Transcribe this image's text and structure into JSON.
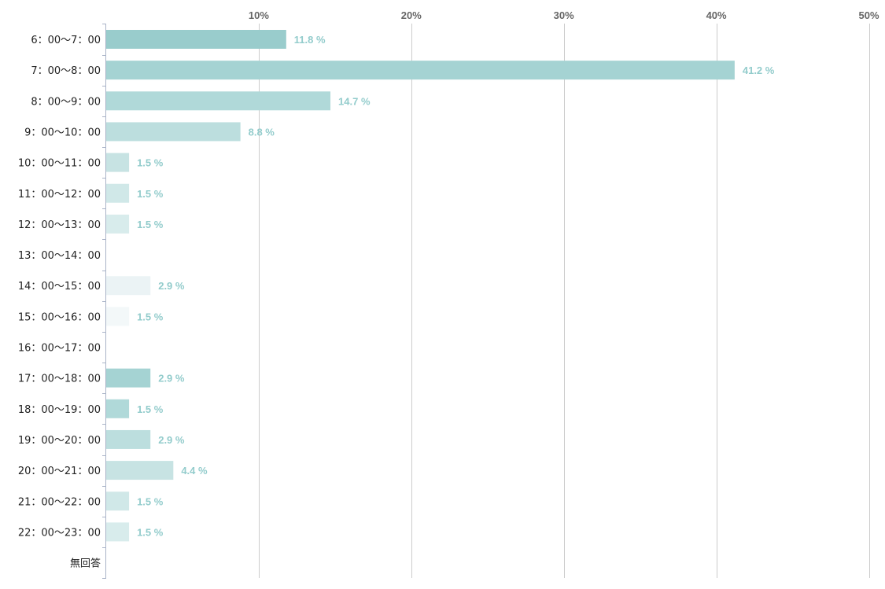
{
  "chart_data": {
    "type": "bar",
    "orientation": "horizontal",
    "categories": [
      "6：00〜7：00",
      "7：00〜8：00",
      "8：00〜9：00",
      "9：00〜10：00",
      "10：00〜11：00",
      "11：00〜12：00",
      "12：00〜13：00",
      "13：00〜14：00",
      "14：00〜15：00",
      "15：00〜16：00",
      "16：00〜17：00",
      "17：00〜18：00",
      "18：00〜19：00",
      "19：00〜20：00",
      "20：00〜21：00",
      "21：00〜22：00",
      "22：00〜23：00",
      "無回答"
    ],
    "values": [
      11.8,
      41.2,
      14.7,
      8.8,
      1.5,
      1.5,
      1.5,
      0,
      2.9,
      1.5,
      0,
      2.9,
      1.5,
      2.9,
      4.4,
      1.5,
      1.5,
      0
    ],
    "value_labels": [
      "11.8 %",
      "41.2 %",
      "14.7 %",
      "8.8 %",
      "1.5 %",
      "1.5 %",
      "1.5 %",
      "",
      "2.9 %",
      "1.5 %",
      "",
      "2.9 %",
      "1.5 %",
      "2.9 %",
      "4.4 %",
      "1.5 %",
      "1.5 %",
      ""
    ],
    "bar_colors": [
      "#99cccc",
      "#a5d3d3",
      "#b0d9d9",
      "#bcdede",
      "#c7e3e3",
      "#d0e8e8",
      "#d8ecec",
      "#e4f1f1",
      "#ebf3f5",
      "#f3f8f9",
      "#ffffff",
      "#a5d3d3",
      "#b0d9d9",
      "#bcdede",
      "#c7e3e3",
      "#d0e8e8",
      "#d8ecec",
      "#e4f1f1"
    ],
    "x_ticks": [
      "10%",
      "20%",
      "30%",
      "40%",
      "50%"
    ],
    "x_tick_values": [
      10,
      20,
      30,
      40,
      50
    ],
    "xlim": [
      0,
      50
    ],
    "grid": true,
    "xlabel": "",
    "ylabel": "",
    "title": ""
  },
  "colors": {
    "value_label": "#93cccc",
    "gridline": "#cccccc",
    "axis": "#aab4c8",
    "tick_text": "#666666",
    "category_text": "#222222"
  }
}
